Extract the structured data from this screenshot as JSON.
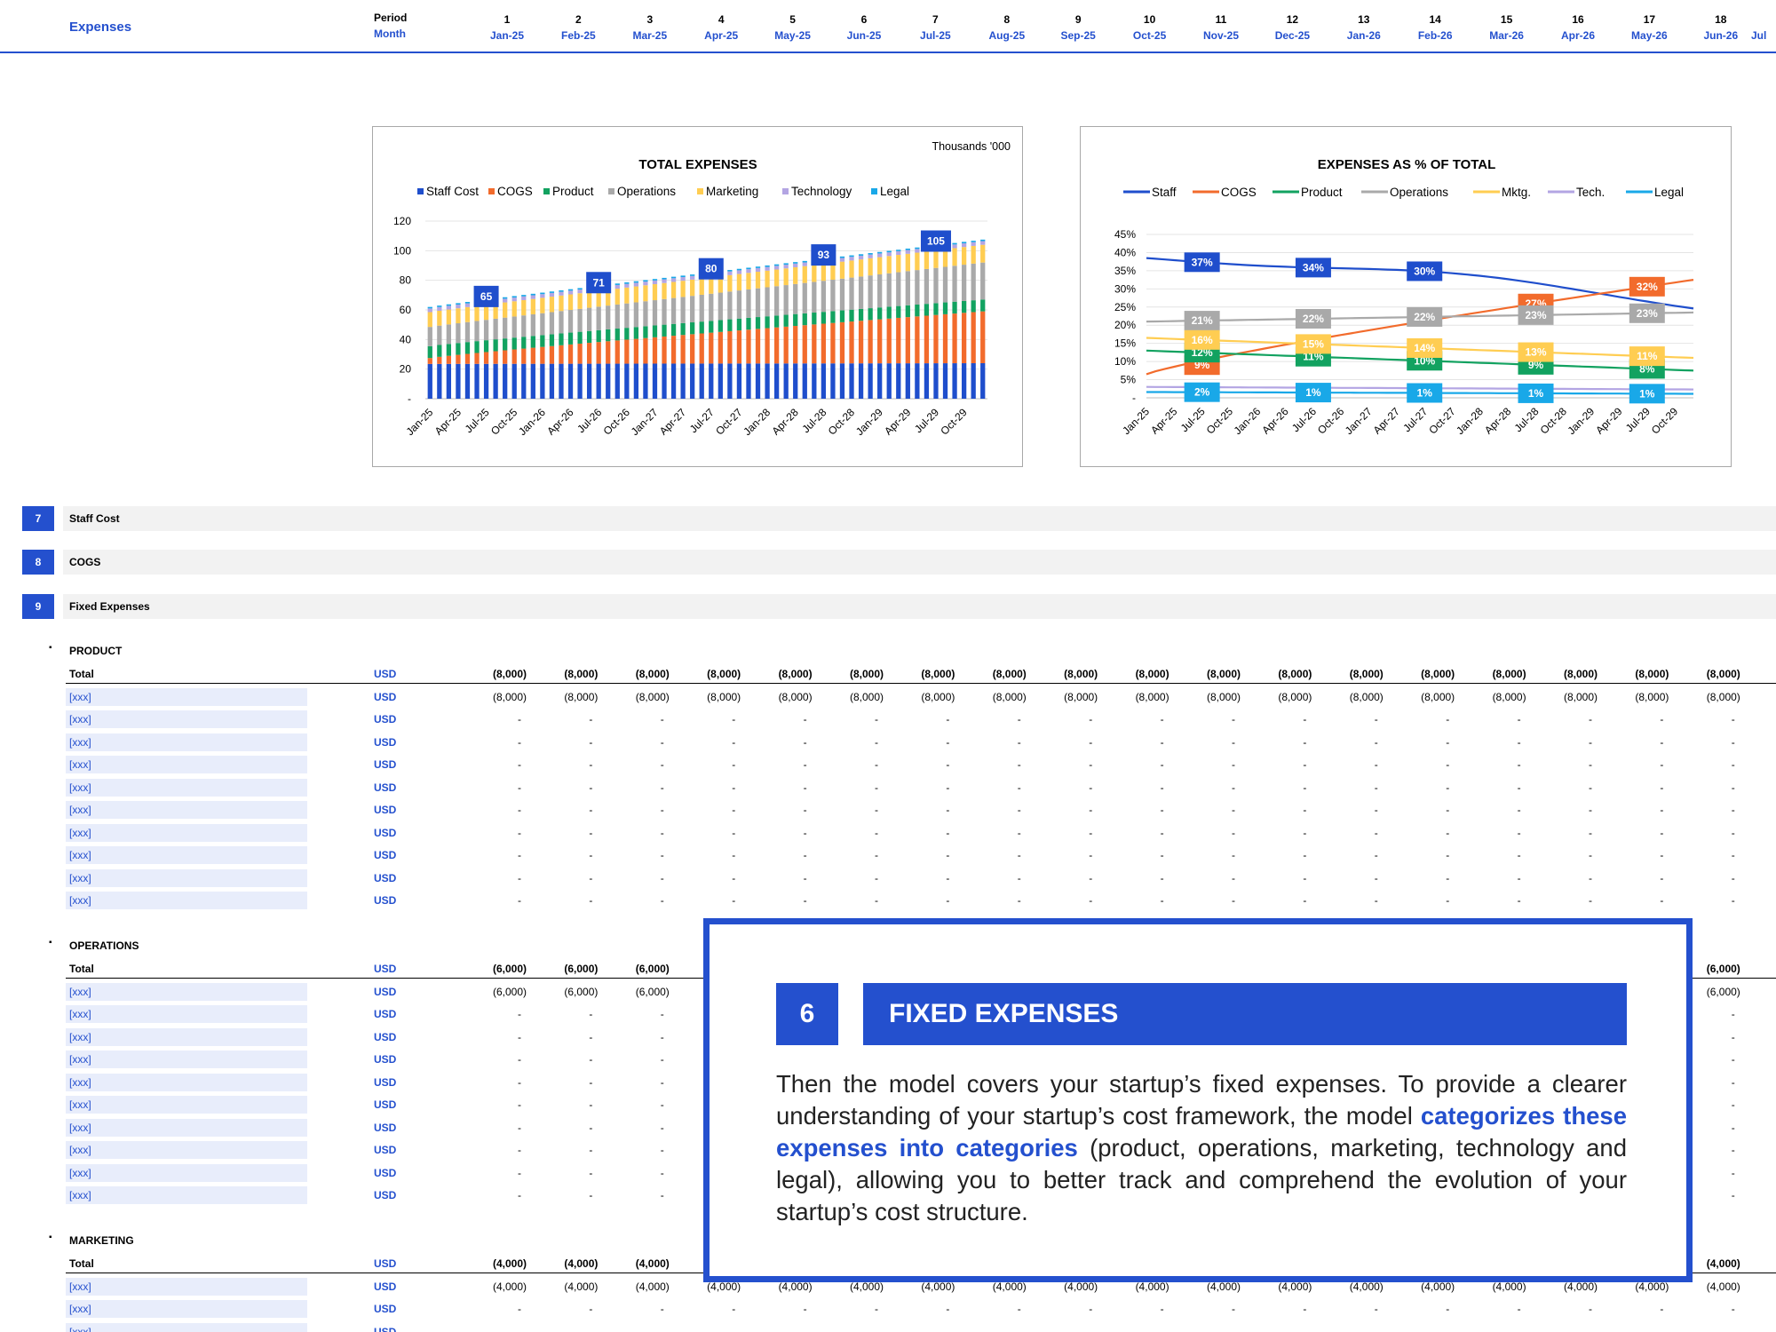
{
  "header": {
    "title": "Expenses",
    "period_label": "Period",
    "month_label": "Month",
    "periods": [
      "1",
      "2",
      "3",
      "4",
      "5",
      "6",
      "7",
      "8",
      "9",
      "10",
      "11",
      "12",
      "13",
      "14",
      "15",
      "16",
      "17",
      "18"
    ],
    "months": [
      "Jan-25",
      "Feb-25",
      "Mar-25",
      "Apr-25",
      "May-25",
      "Jun-25",
      "Jul-25",
      "Aug-25",
      "Sep-25",
      "Oct-25",
      "Nov-25",
      "Dec-25",
      "Jan-26",
      "Feb-26",
      "Mar-26",
      "Apr-26",
      "May-26",
      "Jun-26"
    ],
    "cut_label": "Jul"
  },
  "charts": {
    "total": {
      "note": "Thousands '000"
    },
    "share": {}
  },
  "chart_data": [
    {
      "type": "bar",
      "stacked": true,
      "title": "TOTAL EXPENSES",
      "subtitle": "Thousands '000",
      "ylim": [
        0,
        120
      ],
      "yticks": [
        "-",
        "20",
        "40",
        "60",
        "80",
        "100",
        "120"
      ],
      "xticks": [
        "Jan-25",
        "Apr-25",
        "Jul-25",
        "Oct-25",
        "Jan-26",
        "Apr-26",
        "Jul-26",
        "Oct-26",
        "Jan-27",
        "Apr-27",
        "Jul-27",
        "Oct-27",
        "Jan-28",
        "Apr-28",
        "Jul-28",
        "Oct-28",
        "Jan-29",
        "Apr-29",
        "Jul-29",
        "Oct-29"
      ],
      "legend": [
        "Staff Cost",
        "COGS",
        "Product",
        "Operations",
        "Marketing",
        "Technology",
        "Legal"
      ],
      "legend_position": "top",
      "series_colors": [
        "#1F4ECC",
        "#F26B2C",
        "#12A260",
        "#A9A9A9",
        "#FFCD52",
        "#B3A5E3",
        "#19A8E8"
      ],
      "totals_start": 62,
      "totals_end": 108,
      "callouts": [
        {
          "x": "Jul-25",
          "value": "65"
        },
        {
          "x": "Jul-26",
          "value": "71"
        },
        {
          "x": "Jul-27",
          "value": "80"
        },
        {
          "x": "Jul-28",
          "value": "93"
        },
        {
          "x": "Jul-29",
          "value": "105"
        }
      ],
      "series": [
        {
          "name": "Staff Cost",
          "values_start": 23.5,
          "values_end": 24
        },
        {
          "name": "COGS",
          "values_start": 4,
          "values_end": 35
        },
        {
          "name": "Product",
          "values_start": 8,
          "values_end": 8
        },
        {
          "name": "Operations",
          "values_start": 13,
          "values_end": 25
        },
        {
          "name": "Marketing",
          "values_start": 10,
          "values_end": 12
        },
        {
          "name": "Technology",
          "values_start": 2.5,
          "values_end": 2.5
        },
        {
          "name": "Legal",
          "values_start": 1,
          "values_end": 1
        }
      ]
    },
    {
      "type": "line",
      "title": "EXPENSES AS % OF TOTAL",
      "ylim": [
        0,
        45
      ],
      "yticks": [
        "-",
        "5%",
        "10%",
        "15%",
        "20%",
        "25%",
        "30%",
        "35%",
        "40%",
        "45%"
      ],
      "xticks": [
        "Jan-25",
        "Apr-25",
        "Jul-25",
        "Oct-25",
        "Jan-26",
        "Apr-26",
        "Jul-26",
        "Oct-26",
        "Jan-27",
        "Apr-27",
        "Jul-27",
        "Oct-27",
        "Jan-28",
        "Apr-28",
        "Jul-28",
        "Oct-28",
        "Jan-29",
        "Apr-29",
        "Jul-29",
        "Oct-29"
      ],
      "legend": [
        "Staff",
        "COGS",
        "Product",
        "Operations",
        "Mktg.",
        "Tech.",
        "Legal"
      ],
      "legend_position": "top",
      "series": [
        {
          "name": "Staff",
          "color": "#1F4ECC",
          "labels": [
            "37%",
            "34%",
            "30%",
            "",
            ""
          ],
          "start": 38.5,
          "end": 22.5
        },
        {
          "name": "COGS",
          "color": "#F26B2C",
          "labels": [
            "9%",
            "",
            "",
            "27%",
            "32%"
          ],
          "start": 6.5,
          "end": 32.5
        },
        {
          "name": "Product",
          "color": "#12A260",
          "labels": [
            "12%",
            "11%",
            "10%",
            "9%",
            "8%"
          ],
          "start": 13,
          "end": 7.5
        },
        {
          "name": "Operations",
          "color": "#A9A9A9",
          "labels": [
            "21%",
            "22%",
            "22%",
            "23%",
            "23%"
          ],
          "start": 21,
          "end": 23.5
        },
        {
          "name": "Mktg.",
          "color": "#FFCD52",
          "labels": [
            "16%",
            "15%",
            "14%",
            "13%",
            "11%"
          ],
          "start": 16.5,
          "end": 11
        },
        {
          "name": "Tech.",
          "color": "#B3A5E3",
          "labels": [
            "",
            "",
            "",
            "",
            ""
          ],
          "start": 3,
          "end": 2.3
        },
        {
          "name": "Legal",
          "color": "#19A8E8",
          "labels": [
            "2%",
            "1%",
            "1%",
            "1%",
            "1%"
          ],
          "start": 1.6,
          "end": 1.1
        }
      ],
      "label_points": [
        "Jul-25",
        "Jul-26",
        "Jul-27",
        "Jul-28",
        "Jul-29"
      ]
    }
  ],
  "sections": [
    {
      "num": "7",
      "label": "Staff Cost"
    },
    {
      "num": "8",
      "label": "COGS"
    },
    {
      "num": "9",
      "label": "Fixed Expenses"
    }
  ],
  "groups": [
    {
      "title": "PRODUCT",
      "total_label": "Total",
      "unit": "USD",
      "value": "(8,000)",
      "item_label": "[xxx]",
      "empty": "-",
      "items": 10
    },
    {
      "title": "OPERATIONS",
      "total_label": "Total",
      "unit": "USD",
      "value": "(6,000)",
      "item_label": "[xxx]",
      "empty": "-",
      "items": 10
    },
    {
      "title": "MARKETING",
      "total_label": "Total",
      "unit": "USD",
      "value": "(4,000)",
      "item_label": "[xxx]",
      "empty": "-",
      "items": 3
    }
  ],
  "callout": {
    "number": "6",
    "title": "FIXED EXPENSES",
    "body_pre": "Then the model covers your startup’s fixed expenses. To provide a clearer understanding of your startup’s cost framework, the model ",
    "body_highlight": "categorizes these expenses into categories",
    "body_post": " (product, operations, marketing, technology and legal), allowing you to better track and comprehend the evolution of your startup’s cost structure."
  }
}
